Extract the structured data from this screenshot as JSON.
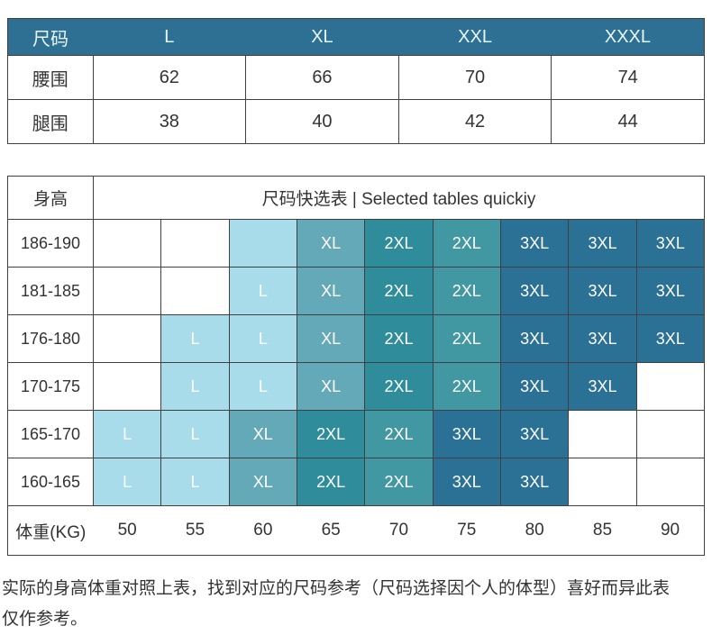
{
  "palette": {
    "header_bg": "#2d7093",
    "header_text": "#eaf6fa",
    "cell_text": "#ffffff",
    "body_text": "#333333",
    "border": "#404040",
    "white": "#ffffff",
    "l_light": "#a9dcea",
    "xl_teal": "#64a9b8",
    "xxl_teal": "#2f8c9a",
    "xxl_teal_alt": "#4197a2",
    "xxxl_blue": "#2b7095"
  },
  "size_table": {
    "header": [
      "尺码",
      "L",
      "XL",
      "XXL",
      "XXXL"
    ],
    "rows": [
      {
        "label": "腰围",
        "values": [
          "62",
          "66",
          "70",
          "74"
        ]
      },
      {
        "label": "腿围",
        "values": [
          "38",
          "40",
          "42",
          "44"
        ]
      }
    ]
  },
  "quick_table": {
    "corner_label": "身高",
    "title": "尺码快选表 | Selected tables quickiy",
    "rows": [
      {
        "label": "186-190",
        "cells": [
          {
            "t": "",
            "c": "white"
          },
          {
            "t": "",
            "c": "white"
          },
          {
            "t": "",
            "c": "l_light"
          },
          {
            "t": "XL",
            "c": "xl_teal"
          },
          {
            "t": "2XL",
            "c": "xxl_teal"
          },
          {
            "t": "2XL",
            "c": "xxl_teal_alt"
          },
          {
            "t": "3XL",
            "c": "xxxl_blue"
          },
          {
            "t": "3XL",
            "c": "xxxl_blue"
          },
          {
            "t": "3XL",
            "c": "xxxl_blue"
          }
        ]
      },
      {
        "label": "181-185",
        "cells": [
          {
            "t": "",
            "c": "white"
          },
          {
            "t": "",
            "c": "white"
          },
          {
            "t": "L",
            "c": "l_light"
          },
          {
            "t": "XL",
            "c": "xl_teal"
          },
          {
            "t": "2XL",
            "c": "xxl_teal"
          },
          {
            "t": "2XL",
            "c": "xxl_teal_alt"
          },
          {
            "t": "3XL",
            "c": "xxxl_blue"
          },
          {
            "t": "3XL",
            "c": "xxxl_blue"
          },
          {
            "t": "3XL",
            "c": "xxxl_blue"
          }
        ]
      },
      {
        "label": "176-180",
        "cells": [
          {
            "t": "",
            "c": "white"
          },
          {
            "t": "L",
            "c": "l_light"
          },
          {
            "t": "L",
            "c": "l_light"
          },
          {
            "t": "XL",
            "c": "xl_teal"
          },
          {
            "t": "2XL",
            "c": "xxl_teal"
          },
          {
            "t": "2XL",
            "c": "xxl_teal_alt"
          },
          {
            "t": "3XL",
            "c": "xxxl_blue"
          },
          {
            "t": "3XL",
            "c": "xxxl_blue"
          },
          {
            "t": "3XL",
            "c": "xxxl_blue"
          }
        ]
      },
      {
        "label": "170-175",
        "cells": [
          {
            "t": "",
            "c": "white"
          },
          {
            "t": "L",
            "c": "l_light"
          },
          {
            "t": "L",
            "c": "l_light"
          },
          {
            "t": "XL",
            "c": "xl_teal"
          },
          {
            "t": "2XL",
            "c": "xxl_teal"
          },
          {
            "t": "2XL",
            "c": "xxl_teal_alt"
          },
          {
            "t": "3XL",
            "c": "xxxl_blue"
          },
          {
            "t": "3XL",
            "c": "xxxl_blue"
          },
          {
            "t": "",
            "c": "white"
          }
        ]
      },
      {
        "label": "165-170",
        "cells": [
          {
            "t": "L",
            "c": "l_light"
          },
          {
            "t": "L",
            "c": "l_light"
          },
          {
            "t": "XL",
            "c": "xl_teal"
          },
          {
            "t": "2XL",
            "c": "xxl_teal"
          },
          {
            "t": "2XL",
            "c": "xxl_teal_alt"
          },
          {
            "t": "3XL",
            "c": "xxxl_blue"
          },
          {
            "t": "3XL",
            "c": "xxxl_blue"
          },
          {
            "t": "",
            "c": "white"
          },
          {
            "t": "",
            "c": "white"
          }
        ]
      },
      {
        "label": "160-165",
        "cells": [
          {
            "t": "L",
            "c": "l_light"
          },
          {
            "t": "L",
            "c": "l_light"
          },
          {
            "t": "XL",
            "c": "xl_teal"
          },
          {
            "t": "2XL",
            "c": "xxl_teal"
          },
          {
            "t": "2XL",
            "c": "xxl_teal_alt"
          },
          {
            "t": "3XL",
            "c": "xxxl_blue"
          },
          {
            "t": "3XL",
            "c": "xxxl_blue"
          },
          {
            "t": "",
            "c": "white"
          },
          {
            "t": "",
            "c": "white"
          }
        ]
      }
    ],
    "weight_row": {
      "label": "体重(KG)",
      "values": [
        "50",
        "55",
        "60",
        "65",
        "70",
        "75",
        "80",
        "85",
        "90"
      ]
    }
  },
  "note": "实际的身高体重对照上表，找到对应的尺码参考（尺码选择因个人的体型）喜好而异此表仅作参考。"
}
